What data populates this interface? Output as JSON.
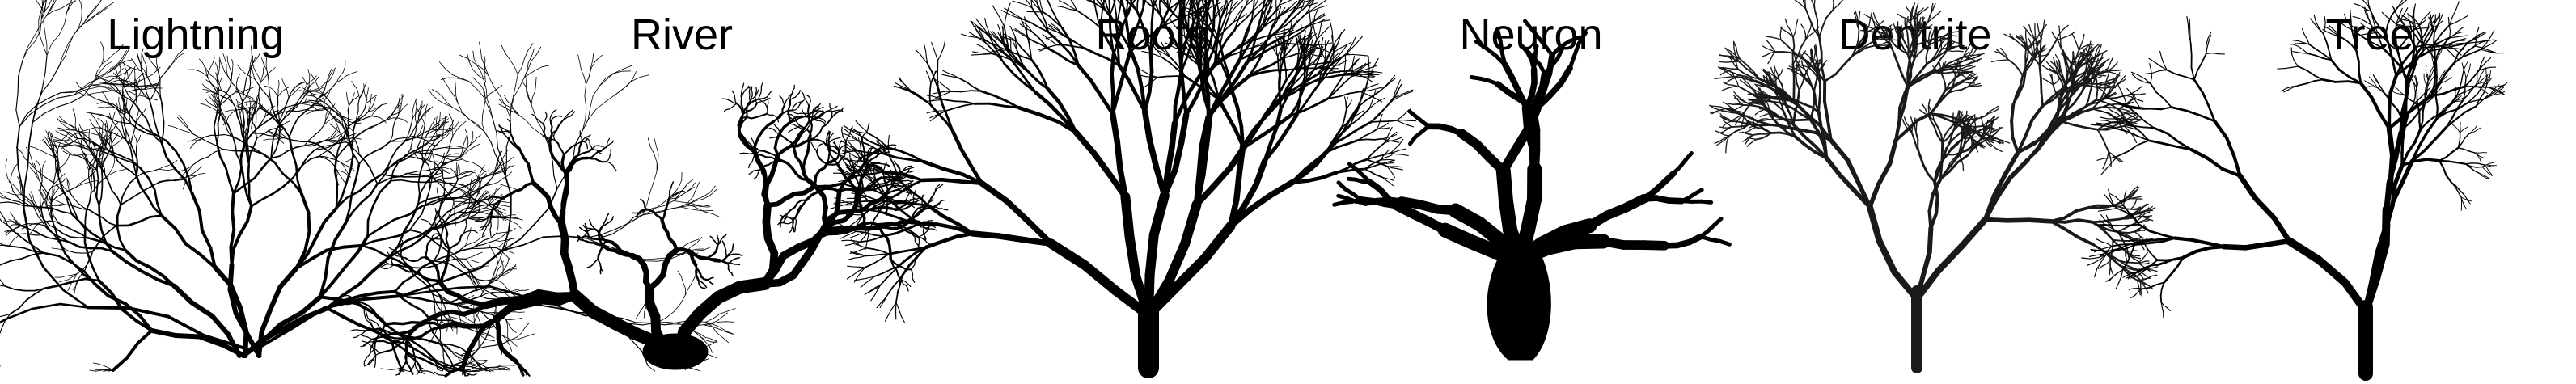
{
  "panels": [
    {
      "label": "Lightning",
      "icon": "lightning-branching-icon"
    },
    {
      "label": "River",
      "icon": "river-network-icon"
    },
    {
      "label": "Roots",
      "icon": "roots-icon"
    },
    {
      "label": "Neuron",
      "icon": "neuron-icon"
    },
    {
      "label": "Dentrite",
      "icon": "dendrite-icon"
    },
    {
      "label": "Tree",
      "icon": "tree-icon"
    }
  ],
  "colors": {
    "ink": "#000000",
    "background": "#ffffff",
    "dentrite_ink": "#1a1a1a"
  }
}
